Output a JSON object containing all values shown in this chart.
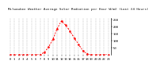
{
  "title": "Milwaukee Weather Average Solar Radiation per Hour W/m2 (Last 24 Hours)",
  "x_values": [
    0,
    1,
    2,
    3,
    4,
    5,
    6,
    7,
    8,
    9,
    10,
    11,
    12,
    13,
    14,
    15,
    16,
    17,
    18,
    19,
    20,
    21,
    22,
    23
  ],
  "y_values": [
    0,
    0,
    0,
    0,
    0,
    0,
    0,
    2,
    18,
    55,
    110,
    185,
    240,
    210,
    170,
    120,
    75,
    30,
    5,
    0,
    0,
    0,
    2,
    0
  ],
  "line_color": "#ff0000",
  "bg_color": "#ffffff",
  "plot_bg": "#ffffff",
  "grid_color": "#888888",
  "ylim": [
    0,
    260
  ],
  "ytick_values": [
    50,
    100,
    150,
    200,
    250
  ],
  "title_fontsize": 3.0,
  "tick_fontsize": 2.8
}
